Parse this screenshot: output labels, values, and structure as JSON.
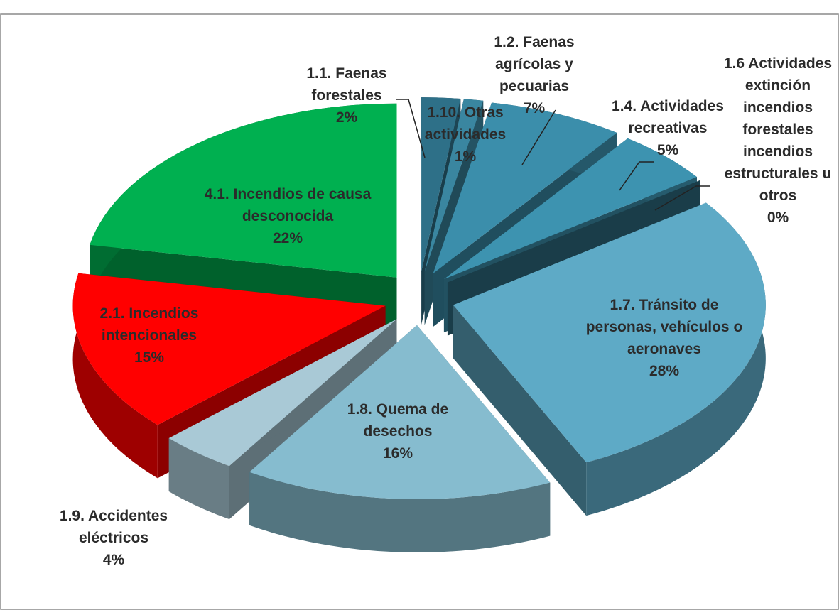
{
  "chart_data": {
    "type": "pie",
    "categories": [
      "1.1. Faenas forestales",
      "1.10. Otras actividades",
      "1.2. Faenas agrícolas y pecuarias",
      "1.4. Actividades recreativas",
      "1.6 Actividades extinción incendios forestales incendios estructurales u otros",
      "1.7. Tránsito de personas, vehículos o aeronaves",
      "1.8. Quema de desechos",
      "1.9. Accidentes eléctricos",
      "2.1. Incendios intencionales",
      "4.1. Incendios de causa desconocida"
    ],
    "values": [
      2,
      1,
      7,
      5,
      0,
      28,
      16,
      4,
      15,
      22
    ],
    "value_labels": [
      "2%",
      "1%",
      "7%",
      "5%",
      "0%",
      "28%",
      "16%",
      "4%",
      "15%",
      "22%"
    ],
    "colors": [
      "#2e7088",
      "#3a86a0",
      "#3b8eab",
      "#3d93b0",
      "#2f6f85",
      "#5eaac6",
      "#86bccf",
      "#a9c9d6",
      "#ff0000",
      "#00b050"
    ]
  }
}
